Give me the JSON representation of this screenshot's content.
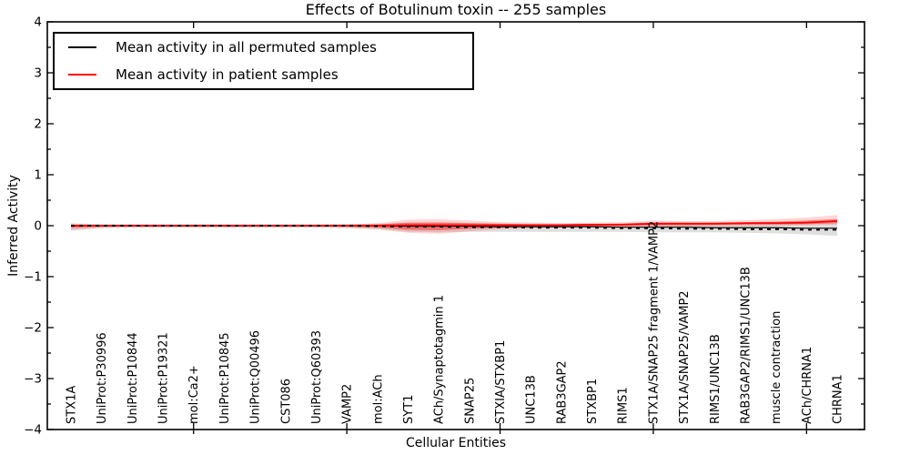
{
  "figure": {
    "title": "Effects of Botulinum toxin -- 255 samples",
    "xlabel": "Cellular Entities",
    "ylabel": "Inferred Activity"
  },
  "legend": {
    "position": "upper left",
    "entries": [
      {
        "label": "Mean activity in all permuted samples",
        "color": "#000000"
      },
      {
        "label": "Mean activity in patient samples",
        "color": "#ff0000"
      }
    ]
  },
  "chart_data": {
    "type": "line",
    "title": "Effects of Botulinum toxin -- 255 samples",
    "xlabel": "Cellular Entities",
    "ylabel": "Inferred Activity",
    "ylim": [
      -4,
      4
    ],
    "yticks": [
      -4,
      -3,
      -2,
      -1,
      0,
      1,
      2,
      3,
      4
    ],
    "y_minor_step": 0.5,
    "x_major_ticks": [
      5,
      10,
      15,
      20,
      25
    ],
    "grid": false,
    "legend_position": "upper left",
    "categories": [
      "STX1A",
      "UniProt:P30996",
      "UniProt:P10844",
      "UniProt:P19321",
      "mol:Ca2+",
      "UniProt:P10845",
      "UniProt:Q00496",
      "CST086",
      "UniProt:Q60393",
      "VAMP2",
      "mol:ACh",
      "SYT1",
      "ACh/Synaptotagmin 1",
      "SNAP25",
      "STXIA/STXBP1",
      "UNC13B",
      "RAB3GAP2",
      "STXBP1",
      "RIMS1",
      "STX1A/SNAP25 fragment 1/VAMP2",
      "STX1A/SNAP25/VAMP2",
      "RIMS1/UNC13B",
      "RAB3GAP2/RIMS1/UNC13B",
      "muscle contraction",
      "ACh/CHRNA1",
      "CHRNA1"
    ],
    "series": [
      {
        "name": "Mean activity in all permuted samples",
        "color": "#000000",
        "style": "solid",
        "values": [
          0,
          0,
          0,
          0,
          0,
          0,
          0,
          0,
          0,
          0,
          0,
          -0.01,
          -0.01,
          -0.01,
          -0.02,
          -0.02,
          -0.02,
          -0.02,
          -0.03,
          -0.03,
          -0.03,
          -0.04,
          -0.04,
          -0.04,
          -0.05,
          -0.05
        ]
      },
      {
        "name": "Mean activity in patient samples",
        "color": "#ff0000",
        "style": "solid",
        "values": [
          0,
          0,
          0,
          0,
          0,
          0,
          0,
          0,
          0,
          0,
          0,
          0.01,
          0.01,
          0.01,
          0.01,
          0.01,
          0.01,
          0.02,
          0.02,
          0.04,
          0.04,
          0.04,
          0.05,
          0.05,
          0.06,
          0.09
        ]
      },
      {
        "name": "Permuted mean dashed overlay",
        "color": "#000000",
        "style": "dashed",
        "values": [
          0,
          0,
          0,
          0,
          0,
          0,
          0,
          0,
          0,
          0,
          -0.01,
          -0.02,
          -0.02,
          -0.03,
          -0.03,
          -0.04,
          -0.04,
          -0.04,
          -0.05,
          -0.05,
          -0.06,
          -0.06,
          -0.07,
          -0.07,
          -0.08,
          -0.08
        ]
      }
    ],
    "bands": [
      {
        "name": "permuted samples range",
        "color": "#9a9a9a",
        "opacity": 0.32,
        "hi": [
          0.05,
          0.03,
          0.03,
          0.03,
          0.03,
          0.03,
          0.03,
          0.03,
          0.03,
          0.03,
          0.04,
          0.05,
          0.05,
          0.05,
          0.04,
          0.04,
          0.04,
          0.04,
          0.04,
          0.05,
          0.05,
          0.05,
          0.05,
          0.05,
          0.05,
          0.06
        ],
        "lo": [
          -0.1,
          -0.05,
          -0.04,
          -0.04,
          -0.04,
          -0.04,
          -0.04,
          -0.04,
          -0.04,
          -0.05,
          -0.07,
          -0.12,
          -0.13,
          -0.12,
          -0.12,
          -0.12,
          -0.12,
          -0.12,
          -0.12,
          -0.13,
          -0.13,
          -0.13,
          -0.14,
          -0.15,
          -0.17,
          -0.2
        ]
      },
      {
        "name": "patient samples outer range",
        "color": "#ff2222",
        "opacity": 0.18,
        "hi": [
          0.04,
          0.02,
          0.02,
          0.02,
          0.02,
          0.02,
          0.02,
          0.02,
          0.02,
          0.03,
          0.05,
          0.12,
          0.13,
          0.1,
          0.07,
          0.06,
          0.05,
          0.06,
          0.07,
          0.1,
          0.09,
          0.09,
          0.11,
          0.13,
          0.16,
          0.21
        ],
        "lo": [
          -0.08,
          -0.04,
          -0.03,
          -0.03,
          -0.03,
          -0.03,
          -0.03,
          -0.03,
          -0.03,
          -0.04,
          -0.07,
          -0.14,
          -0.16,
          -0.11,
          -0.07,
          -0.05,
          -0.04,
          -0.03,
          -0.03,
          -0.02,
          -0.02,
          -0.01,
          -0.01,
          0.0,
          0.01,
          0.02
        ]
      },
      {
        "name": "patient samples inner range",
        "color": "#ff0000",
        "opacity": 0.42,
        "hi": [
          0.02,
          0.01,
          0.01,
          0.01,
          0.01,
          0.01,
          0.01,
          0.01,
          0.01,
          0.015,
          0.025,
          0.06,
          0.065,
          0.05,
          0.04,
          0.03,
          0.03,
          0.035,
          0.04,
          0.065,
          0.06,
          0.06,
          0.07,
          0.08,
          0.1,
          0.13
        ],
        "lo": [
          -0.04,
          -0.02,
          -0.015,
          -0.015,
          -0.015,
          -0.015,
          -0.015,
          -0.015,
          -0.015,
          -0.02,
          -0.035,
          -0.08,
          -0.09,
          -0.06,
          -0.04,
          -0.02,
          -0.015,
          -0.01,
          -0.005,
          0.01,
          0.01,
          0.015,
          0.02,
          0.025,
          0.03,
          0.05
        ]
      }
    ]
  }
}
